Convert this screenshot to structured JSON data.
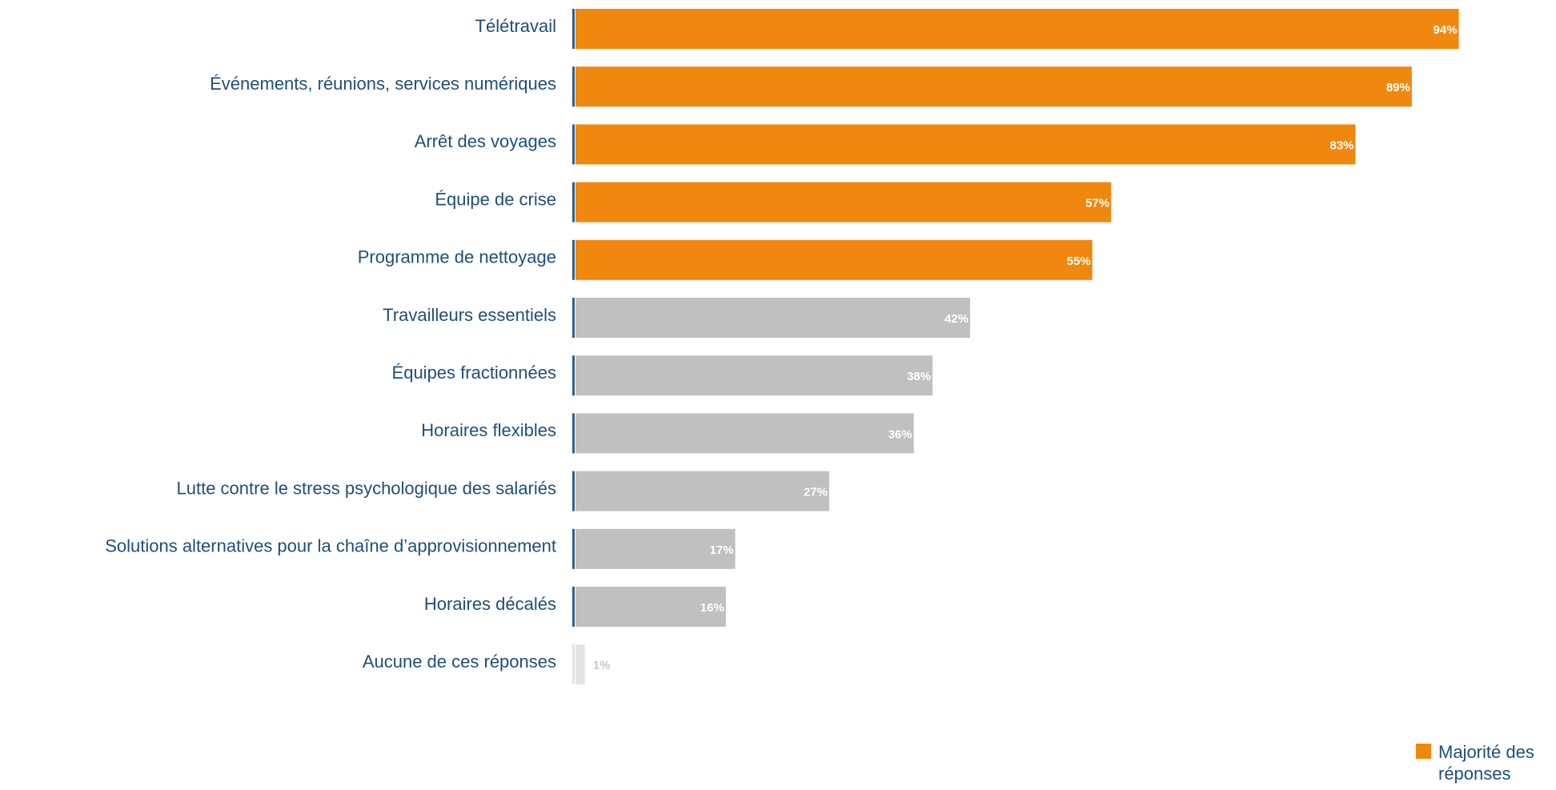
{
  "chart_data": {
    "type": "bar",
    "orientation": "horizontal",
    "categories": [
      "Télétravail",
      "Événements, réunions, services numériques",
      "Arrêt des voyages",
      "Équipe de crise",
      "Programme de nettoyage",
      "Travailleurs essentiels",
      "Équipes fractionnées",
      "Horaires flexibles",
      "Lutte contre le stress psychologique des salariés",
      "Solutions alternatives pour la chaîne d’approvisionnement",
      "Horaires décalés",
      "Aucune de ces réponses"
    ],
    "values": [
      94,
      89,
      83,
      57,
      55,
      42,
      38,
      36,
      27,
      17,
      16,
      1
    ],
    "value_labels": [
      "94%",
      "89%",
      "83%",
      "57%",
      "55%",
      "42%",
      "38%",
      "36%",
      "27%",
      "17%",
      "16%",
      "1%"
    ],
    "colors": [
      "#f0880f",
      "#f0880f",
      "#f0880f",
      "#f0880f",
      "#f0880f",
      "#c0c0c0",
      "#c0c0c0",
      "#c0c0c0",
      "#c0c0c0",
      "#c0c0c0",
      "#c0c0c0",
      "#e3e3e3"
    ],
    "legend": {
      "label": "Majorité des réponses",
      "color": "#f0880f"
    }
  }
}
